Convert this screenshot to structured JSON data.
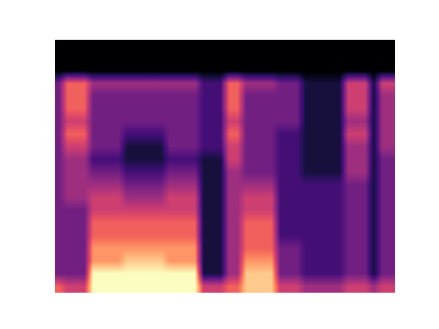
{
  "chart_data": {
    "type": "heatmap",
    "color": "magma",
    "tick_labels": false,
    "cells": [
      [
        0,
        0,
        0,
        0,
        0,
        0,
        0,
        0,
        0,
        0,
        0,
        0,
        0,
        0,
        0,
        0,
        0,
        0,
        0,
        0,
        0,
        0,
        0,
        0,
        0,
        0,
        0,
        0,
        0,
        0,
        0,
        0,
        0,
        0,
        0,
        0,
        0,
        0,
        0,
        0
      ],
      [
        0,
        0,
        0,
        0,
        0,
        0,
        0,
        0,
        0,
        0,
        0,
        0,
        0,
        0,
        0,
        0,
        0,
        0,
        0,
        0,
        0,
        0,
        0,
        0,
        0,
        0,
        0,
        0,
        0,
        0,
        0,
        0,
        0,
        0,
        0,
        0,
        0,
        0,
        0,
        0
      ],
      [
        0,
        0,
        0,
        0,
        0,
        0,
        0,
        0,
        0,
        0,
        0,
        0,
        0,
        0,
        0,
        0,
        0,
        0,
        0,
        0,
        0,
        0,
        0,
        0,
        0,
        0,
        0,
        0,
        0,
        0,
        0,
        0,
        0,
        0,
        0,
        0,
        0,
        0,
        0,
        0
      ],
      [
        3,
        6,
        6,
        6,
        4,
        4,
        4,
        4,
        4,
        4,
        4,
        4,
        4,
        4,
        4,
        4,
        4,
        2,
        2,
        2,
        6,
        6,
        4,
        4,
        4,
        4,
        3,
        3,
        3,
        1,
        1,
        1,
        1,
        1,
        5,
        5,
        5,
        1,
        5,
        5
      ],
      [
        3,
        6,
        6,
        6,
        3,
        3,
        3,
        3,
        3,
        3,
        3,
        3,
        3,
        3,
        3,
        3,
        3,
        2,
        2,
        2,
        6,
        6,
        3,
        3,
        3,
        3,
        3,
        3,
        3,
        1,
        1,
        1,
        1,
        1,
        5,
        5,
        5,
        1,
        4,
        4
      ],
      [
        3,
        6,
        6,
        6,
        3,
        3,
        3,
        3,
        3,
        3,
        3,
        3,
        3,
        3,
        3,
        3,
        3,
        2,
        2,
        2,
        6,
        6,
        3,
        3,
        3,
        3,
        3,
        3,
        3,
        1,
        1,
        1,
        1,
        1,
        5,
        5,
        5,
        1,
        4,
        4
      ],
      [
        3,
        5,
        5,
        5,
        3,
        3,
        3,
        3,
        3,
        3,
        3,
        3,
        3,
        3,
        3,
        3,
        3,
        2,
        2,
        2,
        5,
        5,
        3,
        3,
        3,
        3,
        3,
        3,
        3,
        1,
        1,
        1,
        1,
        1,
        4,
        4,
        4,
        1,
        4,
        4
      ],
      [
        3,
        6,
        6,
        6,
        3,
        3,
        3,
        3,
        2,
        2,
        2,
        2,
        2,
        3,
        3,
        3,
        3,
        2,
        2,
        2,
        6,
        6,
        3,
        3,
        3,
        3,
        2,
        2,
        2,
        1,
        1,
        1,
        1,
        1,
        5,
        5,
        5,
        1,
        4,
        4
      ],
      [
        3,
        5,
        5,
        5,
        3,
        3,
        3,
        3,
        1,
        1,
        1,
        1,
        1,
        3,
        3,
        3,
        3,
        2,
        2,
        2,
        5,
        5,
        3,
        3,
        3,
        3,
        2,
        2,
        2,
        1,
        1,
        1,
        1,
        1,
        4,
        4,
        4,
        1,
        4,
        4
      ],
      [
        3,
        4,
        4,
        4,
        2,
        2,
        2,
        2,
        1,
        1,
        1,
        1,
        1,
        2,
        2,
        2,
        2,
        1,
        1,
        1,
        5,
        5,
        3,
        3,
        3,
        3,
        2,
        2,
        2,
        1,
        1,
        1,
        1,
        1,
        4,
        4,
        4,
        1,
        3,
        3
      ],
      [
        3,
        4,
        4,
        4,
        3,
        3,
        3,
        3,
        2,
        2,
        2,
        2,
        2,
        3,
        3,
        3,
        3,
        1,
        1,
        1,
        4,
        4,
        3,
        3,
        3,
        3,
        2,
        2,
        2,
        1,
        1,
        1,
        1,
        1,
        4,
        4,
        4,
        1,
        3,
        3
      ],
      [
        3,
        4,
        4,
        4,
        4,
        4,
        4,
        4,
        3,
        3,
        3,
        3,
        3,
        4,
        4,
        4,
        4,
        1,
        1,
        1,
        4,
        4,
        4,
        4,
        4,
        4,
        2,
        2,
        2,
        2,
        2,
        2,
        2,
        2,
        3,
        3,
        3,
        1,
        3,
        3
      ],
      [
        3,
        4,
        4,
        4,
        5,
        5,
        5,
        5,
        4,
        4,
        4,
        4,
        4,
        5,
        5,
        5,
        5,
        1,
        1,
        1,
        4,
        4,
        5,
        5,
        5,
        5,
        2,
        2,
        2,
        2,
        2,
        2,
        2,
        2,
        3,
        3,
        3,
        1,
        3,
        3
      ],
      [
        3,
        3,
        3,
        3,
        5,
        5,
        5,
        5,
        5,
        5,
        5,
        5,
        5,
        5,
        5,
        5,
        5,
        1,
        1,
        1,
        4,
        4,
        5,
        5,
        5,
        5,
        2,
        2,
        2,
        2,
        2,
        2,
        2,
        2,
        3,
        3,
        3,
        1,
        3,
        3
      ],
      [
        3,
        3,
        3,
        3,
        6,
        6,
        6,
        6,
        6,
        6,
        6,
        6,
        6,
        6,
        6,
        6,
        6,
        1,
        1,
        1,
        4,
        4,
        6,
        6,
        6,
        6,
        2,
        2,
        2,
        2,
        2,
        2,
        2,
        2,
        3,
        3,
        3,
        1,
        3,
        3
      ],
      [
        3,
        3,
        3,
        3,
        6,
        6,
        6,
        6,
        6,
        6,
        6,
        6,
        6,
        6,
        6,
        6,
        6,
        1,
        1,
        1,
        4,
        4,
        6,
        6,
        6,
        6,
        2,
        2,
        2,
        2,
        2,
        2,
        2,
        2,
        3,
        3,
        3,
        1,
        3,
        3
      ],
      [
        3,
        3,
        3,
        3,
        7,
        7,
        7,
        7,
        7,
        7,
        7,
        7,
        7,
        7,
        7,
        7,
        7,
        1,
        1,
        1,
        4,
        4,
        6,
        6,
        6,
        6,
        3,
        3,
        3,
        2,
        2,
        2,
        2,
        2,
        3,
        3,
        3,
        1,
        3,
        3
      ],
      [
        3,
        3,
        3,
        3,
        7,
        7,
        7,
        7,
        8,
        8,
        8,
        8,
        8,
        7,
        7,
        7,
        7,
        1,
        1,
        1,
        4,
        4,
        7,
        7,
        7,
        7,
        3,
        3,
        3,
        2,
        2,
        2,
        2,
        2,
        3,
        3,
        3,
        1,
        3,
        3
      ],
      [
        3,
        3,
        3,
        3,
        9,
        9,
        9,
        9,
        9,
        9,
        9,
        9,
        9,
        9,
        9,
        9,
        9,
        1,
        1,
        1,
        4,
        4,
        8,
        8,
        8,
        8,
        3,
        3,
        3,
        2,
        2,
        2,
        2,
        2,
        3,
        3,
        3,
        1,
        3,
        3
      ],
      [
        6,
        5,
        5,
        5,
        9,
        9,
        9,
        9,
        9,
        9,
        9,
        9,
        9,
        9,
        9,
        9,
        9,
        5,
        5,
        5,
        6,
        6,
        8,
        8,
        8,
        8,
        5,
        5,
        5,
        4,
        4,
        4,
        4,
        4,
        5,
        5,
        5,
        4,
        5,
        5
      ]
    ]
  }
}
